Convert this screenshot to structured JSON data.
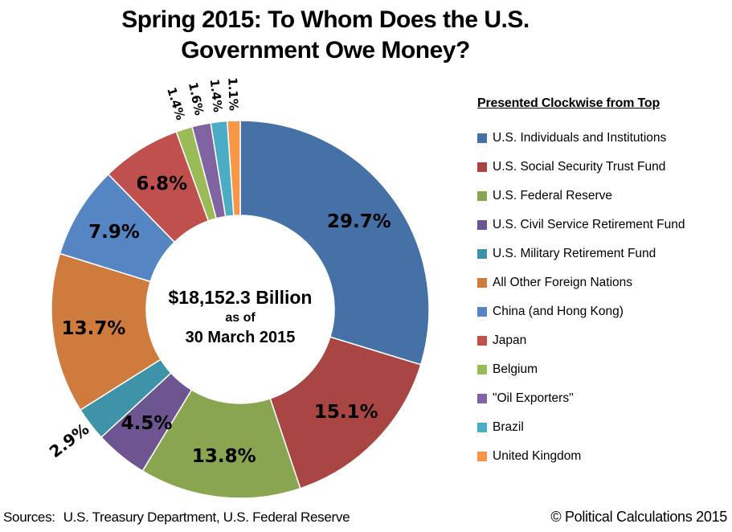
{
  "title": {
    "line1": "Spring 2015: To Whom Does the U.S.",
    "line2": "Government Owe Money?"
  },
  "center": {
    "total": "$18,152.3 Billion",
    "asof": "as of",
    "date": "30 March 2015"
  },
  "legend": {
    "title": "Presented Clockwise from Top"
  },
  "footer": {
    "sources_label": "Sources:",
    "sources_text": "U.S. Treasury Department, U.S. Federal Reserve",
    "copyright": "© Political Calculations 2015"
  },
  "chart_data": {
    "type": "pie",
    "subtype": "donut",
    "title": "Spring 2015: To Whom Does the U.S. Government Owe Money?",
    "center_total": "$18,152.3 Billion as of 30 March 2015",
    "order": "clockwise from top",
    "legend_position": "right",
    "slices": [
      {
        "label": "U.S. Individuals and Institutions",
        "pct": 29.7,
        "pct_label": "29.7%",
        "color": "#4571A6"
      },
      {
        "label": "U.S. Social Security Trust Fund",
        "pct": 15.1,
        "pct_label": "15.1%",
        "color": "#A94643"
      },
      {
        "label": "U.S. Federal Reserve",
        "pct": 13.8,
        "pct_label": "13.8%",
        "color": "#8AA54F"
      },
      {
        "label": "U.S. Civil Service Retirement Fund",
        "pct": 4.5,
        "pct_label": "4.5%",
        "color": "#6C5590"
      },
      {
        "label": "U.S. Military Retirement Fund",
        "pct": 2.9,
        "pct_label": "2.9%",
        "color": "#3E93A9"
      },
      {
        "label": "All Other Foreign Nations",
        "pct": 13.7,
        "pct_label": "13.7%",
        "color": "#CF7B3D"
      },
      {
        "label": "China (and Hong Kong)",
        "pct": 7.9,
        "pct_label": "7.9%",
        "color": "#5585C2"
      },
      {
        "label": "Japan",
        "pct": 6.8,
        "pct_label": "6.8%",
        "color": "#C0504D"
      },
      {
        "label": "Belgium",
        "pct": 1.4,
        "pct_label": "1.4%",
        "color": "#9BBB59"
      },
      {
        "label": "\"Oil Exporters\"",
        "pct": 1.6,
        "pct_label": "1.6%",
        "color": "#8064A2"
      },
      {
        "label": "Brazil",
        "pct": 1.4,
        "pct_label": "1.4%",
        "color": "#4BACC6"
      },
      {
        "label": "United Kingdom",
        "pct": 1.1,
        "pct_label": "1.1%",
        "color": "#F79646"
      }
    ]
  }
}
